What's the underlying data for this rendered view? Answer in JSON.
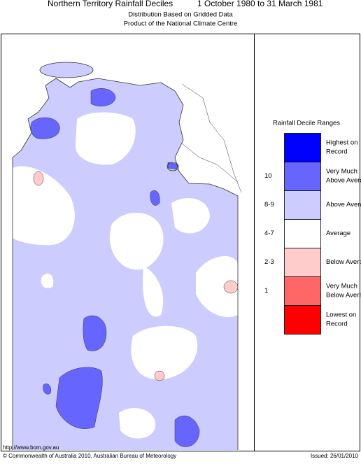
{
  "header": {
    "title": "Northern Territory Rainfall Deciles",
    "period": "1 October 1980 to 31 March 1981",
    "subtitle": [
      "Distribution Based on Gridded Data",
      "Product of the National Climate Centre"
    ]
  },
  "legend": {
    "title": "Rainfall Decile Ranges",
    "items": [
      {
        "lines": [
          "Highest on",
          "Record"
        ],
        "color": "#0000ff"
      },
      {
        "lines": [
          "Very Much",
          "Above Average"
        ],
        "color": "#6666ff",
        "decile": "10"
      },
      {
        "lines": [
          "Above Average"
        ],
        "color": "#ccccff",
        "decile": "8-9"
      },
      {
        "lines": [
          "Average"
        ],
        "color": "#ffffff",
        "decile": "4-7"
      },
      {
        "lines": [
          "Below Average"
        ],
        "color": "#ffcccc",
        "decile": "2-3"
      },
      {
        "lines": [
          "Very Much",
          "Below Average"
        ],
        "color": "#ff6666",
        "decile": "1"
      },
      {
        "lines": [
          "Lowest on",
          "Record"
        ],
        "color": "#ff0000"
      }
    ]
  },
  "footer": {
    "url": "http://www.bom.gov.au",
    "copyright": "© Commonwealth of Australia 2010, Australian Bureau of Meteorology",
    "issued": "Issued: 26/01/2010"
  }
}
